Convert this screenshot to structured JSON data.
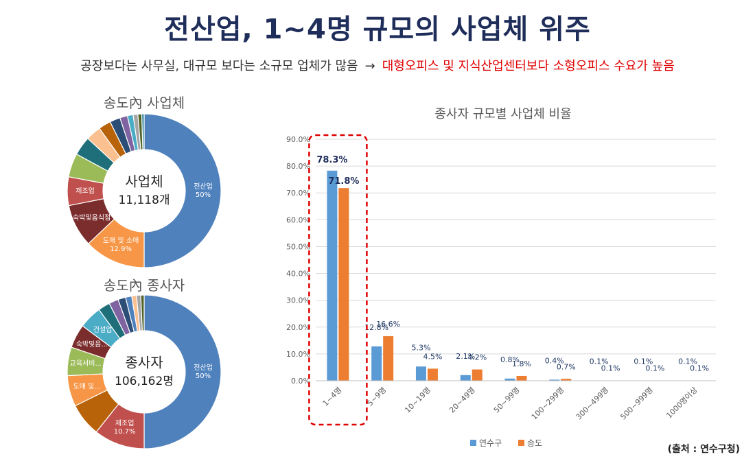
{
  "header": {
    "title": "전산업, 1~4명 규모의 사업체 위주",
    "subtitle_left": "공장보다는 사무실, 대규모 보다는 소규모 업체가 많음",
    "subtitle_arrow": "→",
    "subtitle_right": "대형오피스 및 지식산업센터보다 소형오피스 수요가 높음"
  },
  "source": "(출처 : 연수구청)",
  "chart_data": [
    {
      "type": "pie",
      "title": "송도內 사업체",
      "center_label": "사업체",
      "center_value": "11,118개",
      "slices": [
        {
          "label": "전산업",
          "value": 50.0,
          "value_text": "50%",
          "color": "#4f81bd"
        },
        {
          "label": "도매 및 소매",
          "value": 12.9,
          "value_text": "12.9%",
          "color": "#f79646"
        },
        {
          "label": "숙박및음식점",
          "value": 9.0,
          "value_text": "",
          "color": "#7b2c2c"
        },
        {
          "label": "제조업",
          "value": 6.0,
          "value_text": "",
          "color": "#c0504d"
        },
        {
          "label": "",
          "value": 5.0,
          "value_text": "",
          "color": "#9bbb59"
        },
        {
          "label": "",
          "value": 4.0,
          "value_text": "",
          "color": "#1f6f7a"
        },
        {
          "label": "",
          "value": 3.2,
          "value_text": "",
          "color": "#fac090"
        },
        {
          "label": "",
          "value": 2.6,
          "value_text": "",
          "color": "#b8620a"
        },
        {
          "label": "",
          "value": 2.2,
          "value_text": "",
          "color": "#2c4d75"
        },
        {
          "label": "",
          "value": 1.6,
          "value_text": "",
          "color": "#8064a2"
        },
        {
          "label": "",
          "value": 1.2,
          "value_text": "",
          "color": "#4bacc6"
        },
        {
          "label": "",
          "value": 1.0,
          "value_text": "",
          "color": "#a5a5a5"
        },
        {
          "label": "",
          "value": 0.8,
          "value_text": "",
          "color": "#4f6228"
        },
        {
          "label": "",
          "value": 0.5,
          "value_text": "",
          "color": "#31859c"
        }
      ]
    },
    {
      "type": "pie",
      "title": "송도內 종사자",
      "center_label": "종사자",
      "center_value": "106,162명",
      "slices": [
        {
          "label": "전산업",
          "value": 50.0,
          "value_text": "50%",
          "color": "#4f81bd"
        },
        {
          "label": "제조업",
          "value": 10.7,
          "value_text": "10.7%",
          "color": "#c0504d"
        },
        {
          "label": "",
          "value": 7.0,
          "value_text": "",
          "color": "#b8620a"
        },
        {
          "label": "도매 및...",
          "value": 6.5,
          "value_text": "",
          "color": "#f79646"
        },
        {
          "label": "교육서비...",
          "value": 6.0,
          "value_text": "",
          "color": "#9bbb59"
        },
        {
          "label": "숙박및음...",
          "value": 5.0,
          "value_text": "",
          "color": "#7b2c2c"
        },
        {
          "label": "건설업",
          "value": 4.8,
          "value_text": "",
          "color": "#4bacc6"
        },
        {
          "label": "",
          "value": 2.5,
          "value_text": "",
          "color": "#1f6f7a"
        },
        {
          "label": "",
          "value": 2.0,
          "value_text": "",
          "color": "#8064a2"
        },
        {
          "label": "",
          "value": 1.6,
          "value_text": "",
          "color": "#2c4d75"
        },
        {
          "label": "",
          "value": 1.3,
          "value_text": "",
          "color": "#4f81bd"
        },
        {
          "label": "",
          "value": 1.0,
          "value_text": "",
          "color": "#fac090"
        },
        {
          "label": "",
          "value": 0.9,
          "value_text": "",
          "color": "#a5a5a5"
        },
        {
          "label": "",
          "value": 0.7,
          "value_text": "",
          "color": "#4f6228"
        }
      ]
    },
    {
      "type": "bar",
      "title": "종사자 규모별 사업체 비율",
      "categories": [
        "1~4명",
        "5~9명",
        "10~19명",
        "20~49명",
        "50~99명",
        "100~299명",
        "300~499명",
        "500~999명",
        "1000명이상"
      ],
      "series": [
        {
          "name": "연수구",
          "color": "#5b9bd5",
          "values": [
            78.3,
            12.8,
            5.3,
            2.1,
            0.8,
            0.4,
            0.1,
            0.1,
            0.1
          ]
        },
        {
          "name": "송도",
          "color": "#ed7d31",
          "values": [
            71.8,
            16.6,
            4.5,
            4.2,
            1.8,
            0.7,
            0.1,
            0.1,
            0.1
          ]
        }
      ],
      "ylim": [
        0,
        90
      ],
      "yticks": [
        "0.0%",
        "10.0%",
        "20.0%",
        "30.0%",
        "40.0%",
        "50.0%",
        "60.0%",
        "70.0%",
        "80.0%",
        "90.0%"
      ],
      "grid": true,
      "legend": "bottom",
      "highlight_category": "1~4명"
    }
  ]
}
